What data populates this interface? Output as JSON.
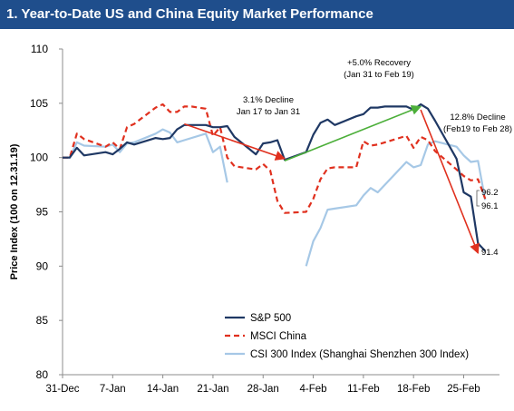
{
  "chart_data": {
    "type": "line",
    "title": "1. Year-to-Date US and China Equity Market Performance",
    "ylabel": "Price Index (100 on 12.31.19)",
    "xlabel": "",
    "ylim": [
      80,
      110
    ],
    "yticks": [
      80,
      85,
      90,
      95,
      100,
      105,
      110
    ],
    "xlim": [
      "2019-12-31",
      "2020-03-01"
    ],
    "xticks": [
      {
        "date": "2019-12-31",
        "label": "31-Dec"
      },
      {
        "date": "2020-01-07",
        "label": "7-Jan"
      },
      {
        "date": "2020-01-14",
        "label": "14-Jan"
      },
      {
        "date": "2020-01-21",
        "label": "21-Jan"
      },
      {
        "date": "2020-01-28",
        "label": "28-Jan"
      },
      {
        "date": "2020-02-04",
        "label": "4-Feb"
      },
      {
        "date": "2020-02-11",
        "label": "11-Feb"
      },
      {
        "date": "2020-02-18",
        "label": "18-Feb"
      },
      {
        "date": "2020-02-25",
        "label": "25-Feb"
      }
    ],
    "grid": false,
    "legend_position": "bottom-center",
    "series": [
      {
        "name": "S&P 500",
        "color": "#1f3864",
        "style": "solid",
        "points": [
          [
            "2019-12-31",
            100.0
          ],
          [
            "2020-01-01",
            100.0
          ],
          [
            "2020-01-02",
            100.9
          ],
          [
            "2020-01-03",
            100.2
          ],
          [
            "2020-01-06",
            100.5
          ],
          [
            "2020-01-07",
            100.3
          ],
          [
            "2020-01-08",
            100.8
          ],
          [
            "2020-01-09",
            101.4
          ],
          [
            "2020-01-10",
            101.2
          ],
          [
            "2020-01-13",
            101.8
          ],
          [
            "2020-01-14",
            101.7
          ],
          [
            "2020-01-15",
            101.8
          ],
          [
            "2020-01-16",
            102.6
          ],
          [
            "2020-01-17",
            103.0
          ],
          [
            "2020-01-18",
            103.0
          ],
          [
            "2020-01-20",
            103.0
          ],
          [
            "2020-01-21",
            102.8
          ],
          [
            "2020-01-22",
            102.8
          ],
          [
            "2020-01-23",
            102.9
          ],
          [
            "2020-01-24",
            101.9
          ],
          [
            "2020-01-27",
            100.3
          ],
          [
            "2020-01-28",
            101.3
          ],
          [
            "2020-01-29",
            101.4
          ],
          [
            "2020-01-30",
            101.6
          ],
          [
            "2020-01-31",
            99.8
          ],
          [
            "2020-02-03",
            100.5
          ],
          [
            "2020-02-04",
            102.1
          ],
          [
            "2020-02-05",
            103.2
          ],
          [
            "2020-02-06",
            103.5
          ],
          [
            "2020-02-07",
            103.0
          ],
          [
            "2020-02-10",
            103.8
          ],
          [
            "2020-02-11",
            104.0
          ],
          [
            "2020-02-12",
            104.6
          ],
          [
            "2020-02-13",
            104.6
          ],
          [
            "2020-02-14",
            104.7
          ],
          [
            "2020-02-17",
            104.7
          ],
          [
            "2020-02-18",
            104.4
          ],
          [
            "2020-02-19",
            104.9
          ],
          [
            "2020-02-20",
            104.5
          ],
          [
            "2020-02-21",
            103.4
          ],
          [
            "2020-02-24",
            99.9
          ],
          [
            "2020-02-25",
            96.8
          ],
          [
            "2020-02-26",
            96.4
          ],
          [
            "2020-02-27",
            92.1
          ],
          [
            "2020-02-28",
            91.4
          ]
        ]
      },
      {
        "name": "MSCI China",
        "color": "#e0301e",
        "style": "dashed",
        "points": [
          [
            "2019-12-31",
            100.0
          ],
          [
            "2020-01-01",
            100.0
          ],
          [
            "2020-01-02",
            102.2
          ],
          [
            "2020-01-03",
            101.7
          ],
          [
            "2020-01-06",
            101.0
          ],
          [
            "2020-01-07",
            101.4
          ],
          [
            "2020-01-08",
            100.8
          ],
          [
            "2020-01-09",
            102.8
          ],
          [
            "2020-01-10",
            103.1
          ],
          [
            "2020-01-13",
            104.6
          ],
          [
            "2020-01-14",
            104.9
          ],
          [
            "2020-01-15",
            104.2
          ],
          [
            "2020-01-16",
            104.2
          ],
          [
            "2020-01-17",
            104.7
          ],
          [
            "2020-01-18",
            104.7
          ],
          [
            "2020-01-20",
            104.5
          ],
          [
            "2020-01-21",
            102.0
          ],
          [
            "2020-01-22",
            102.8
          ],
          [
            "2020-01-23",
            100.0
          ],
          [
            "2020-01-24",
            99.2
          ],
          [
            "2020-01-27",
            98.9
          ],
          [
            "2020-01-28",
            99.4
          ],
          [
            "2020-01-29",
            98.8
          ],
          [
            "2020-01-30",
            96.0
          ],
          [
            "2020-01-31",
            94.9
          ],
          [
            "2020-02-03",
            95.0
          ],
          [
            "2020-02-04",
            96.2
          ],
          [
            "2020-02-05",
            98.0
          ],
          [
            "2020-02-06",
            99.0
          ],
          [
            "2020-02-07",
            99.1
          ],
          [
            "2020-02-10",
            99.1
          ],
          [
            "2020-02-11",
            101.5
          ],
          [
            "2020-02-12",
            101.1
          ],
          [
            "2020-02-13",
            101.2
          ],
          [
            "2020-02-14",
            101.4
          ],
          [
            "2020-02-17",
            102.0
          ],
          [
            "2020-02-18",
            100.9
          ],
          [
            "2020-02-19",
            101.9
          ],
          [
            "2020-02-20",
            101.6
          ],
          [
            "2020-02-21",
            100.6
          ],
          [
            "2020-02-24",
            98.9
          ],
          [
            "2020-02-25",
            98.3
          ],
          [
            "2020-02-26",
            97.9
          ],
          [
            "2020-02-27",
            98.0
          ],
          [
            "2020-02-28",
            96.2
          ]
        ]
      },
      {
        "name": "CSI 300 Index (Shanghai Shenzhen 300 Index)",
        "color": "#a6c8e6",
        "style": "solid",
        "points": [
          [
            "2019-12-31",
            100.0
          ],
          [
            "2020-01-01",
            100.0
          ],
          [
            "2020-01-02",
            101.4
          ],
          [
            "2020-01-03",
            101.1
          ],
          [
            "2020-01-06",
            101.0
          ],
          [
            "2020-01-07",
            101.2
          ],
          [
            "2020-01-08",
            100.5
          ],
          [
            "2020-01-09",
            101.3
          ],
          [
            "2020-01-10",
            101.4
          ],
          [
            "2020-01-13",
            102.2
          ],
          [
            "2020-01-14",
            102.6
          ],
          [
            "2020-01-15",
            102.3
          ],
          [
            "2020-01-16",
            101.4
          ],
          [
            "2020-01-17",
            101.6
          ],
          [
            "2020-01-20",
            102.2
          ],
          [
            "2020-01-21",
            100.5
          ],
          [
            "2020-01-22",
            101.0
          ],
          [
            "2020-01-23",
            97.7
          ],
          null,
          [
            "2020-02-03",
            90.0
          ],
          [
            "2020-02-04",
            92.3
          ],
          [
            "2020-02-05",
            93.5
          ],
          [
            "2020-02-06",
            95.2
          ],
          [
            "2020-02-07",
            95.3
          ],
          [
            "2020-02-10",
            95.6
          ],
          [
            "2020-02-11",
            96.5
          ],
          [
            "2020-02-12",
            97.2
          ],
          [
            "2020-02-13",
            96.8
          ],
          [
            "2020-02-14",
            97.5
          ],
          [
            "2020-02-17",
            99.6
          ],
          [
            "2020-02-18",
            99.1
          ],
          [
            "2020-02-19",
            99.3
          ],
          [
            "2020-02-20",
            101.2
          ],
          [
            "2020-02-21",
            101.5
          ],
          [
            "2020-02-24",
            101.0
          ],
          [
            "2020-02-25",
            100.2
          ],
          [
            "2020-02-26",
            99.6
          ],
          [
            "2020-02-27",
            99.7
          ],
          [
            "2020-02-28",
            96.1
          ]
        ]
      }
    ],
    "trend_arrows": [
      {
        "name": "decline-arrow-jan",
        "color": "#e0301e",
        "from": [
          "2020-01-17",
          103.1
        ],
        "to": [
          "2020-01-31",
          99.9
        ]
      },
      {
        "name": "recovery-arrow",
        "color": "#4caf3a",
        "from": [
          "2020-01-31",
          99.7
        ],
        "to": [
          "2020-02-19",
          104.7
        ]
      },
      {
        "name": "decline-arrow-feb",
        "color": "#e0301e",
        "from": [
          "2020-02-19",
          104.4
        ],
        "to": [
          "2020-02-27",
          91.2
        ]
      }
    ],
    "annotations": [
      {
        "name": "annotation-decline-jan",
        "lines": [
          "3.1% Decline",
          "Jan 17 to Jan 31"
        ]
      },
      {
        "name": "annotation-recovery",
        "lines": [
          "+5.0% Recovery",
          "(Jan 31 to Feb 19)"
        ]
      },
      {
        "name": "annotation-decline-feb",
        "lines": [
          "12.8% Decline",
          "(Feb19 to Feb 28)"
        ]
      }
    ],
    "end_labels": [
      {
        "name": "end-label-msci",
        "text": "96.2",
        "series": "MSCI China"
      },
      {
        "name": "end-label-csi",
        "text": "96.1",
        "series": "CSI 300 Index (Shanghai Shenzhen 300 Index)"
      },
      {
        "name": "end-label-sp500",
        "text": "91.4",
        "series": "S&P 500"
      }
    ]
  }
}
